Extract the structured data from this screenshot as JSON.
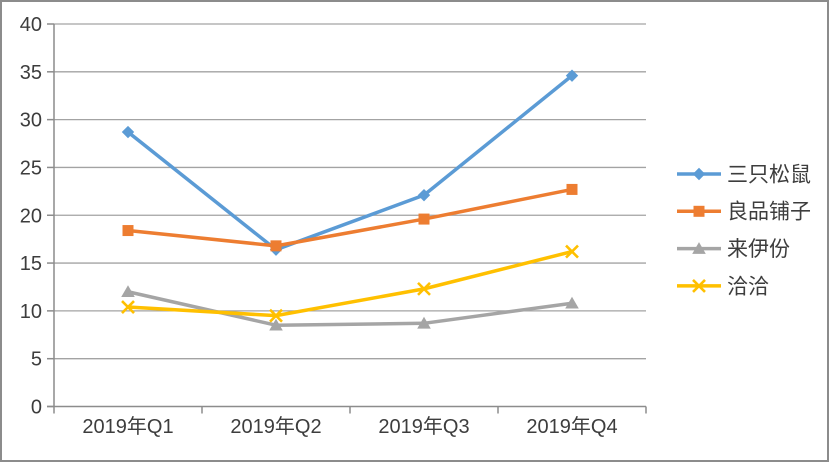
{
  "chart_data": {
    "type": "line",
    "title": "",
    "categories": [
      "2019年Q1",
      "2019年Q2",
      "2019年Q3",
      "2019年Q4"
    ],
    "series": [
      {
        "name": "三只松鼠",
        "color": "#5B9BD5",
        "marker": "diamond",
        "values": [
          28.7,
          16.4,
          22.1,
          34.6
        ]
      },
      {
        "name": "良品铺子",
        "color": "#ED7D31",
        "marker": "square",
        "values": [
          18.4,
          16.8,
          19.6,
          22.7
        ]
      },
      {
        "name": "来伊份",
        "color": "#A5A5A5",
        "marker": "triangle",
        "values": [
          12.0,
          8.5,
          8.7,
          10.8
        ]
      },
      {
        "name": "洽洽",
        "color": "#FFC000",
        "marker": "x",
        "values": [
          10.4,
          9.5,
          12.3,
          16.2
        ]
      }
    ],
    "xlabel": "",
    "ylabel": "",
    "ylim": [
      0,
      40
    ],
    "y_tick_step": 5,
    "y_tick_labels": [
      "0",
      "5",
      "10",
      "15",
      "20",
      "25",
      "30",
      "35",
      "40"
    ],
    "grid": true,
    "legend_position": "right",
    "colors": {
      "text": "#3d3d3d",
      "axis": "#8c8c8c",
      "gridline": "#a3a3a3",
      "background": "#ffffff",
      "border": "#8c8c8c"
    }
  }
}
